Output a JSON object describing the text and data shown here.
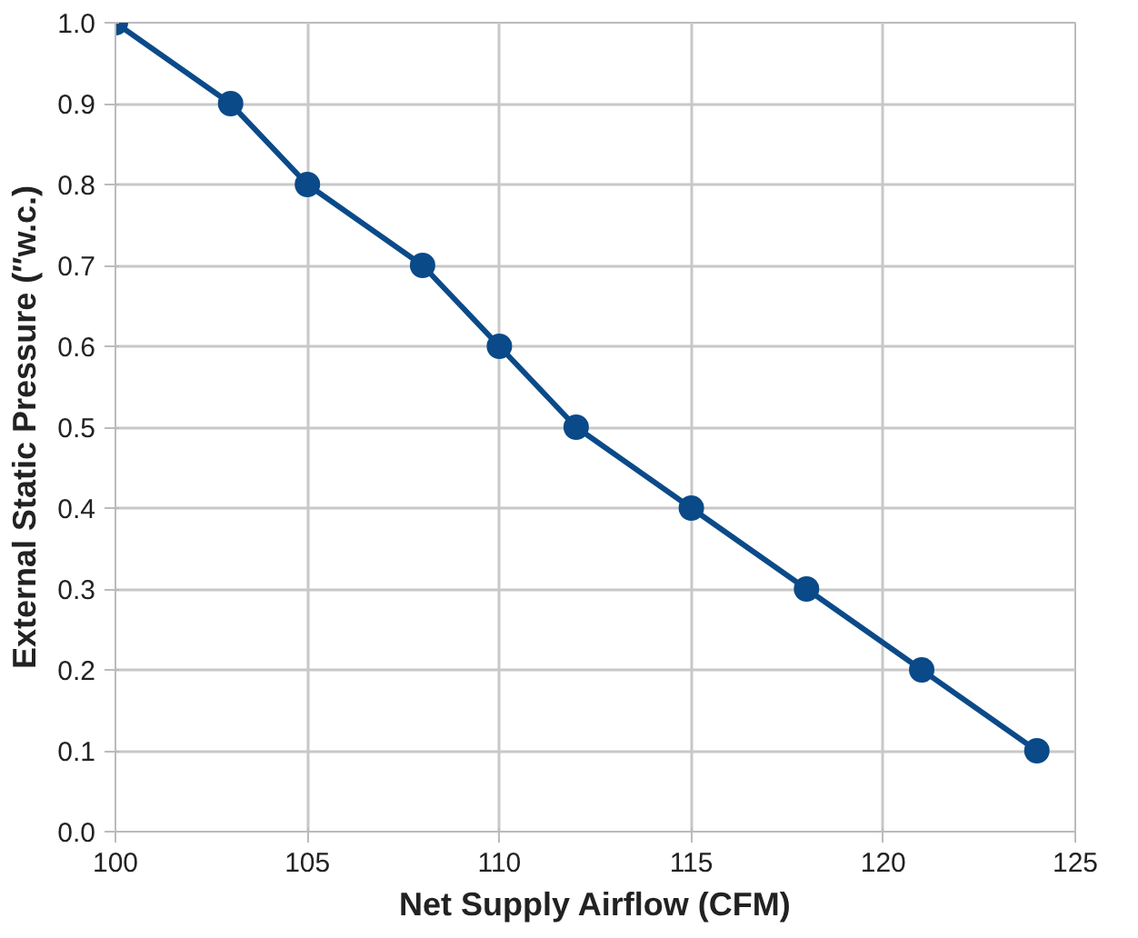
{
  "chart_data": {
    "type": "line",
    "xlabel": "Net Supply Airflow (CFM)",
    "ylabel": "External Static Pressure (″w.c.)",
    "x": [
      100,
      103,
      105,
      108,
      110,
      112,
      115,
      118,
      121,
      124
    ],
    "series": [
      {
        "color": "#0b4a89",
        "values": [
          1.0,
          0.9,
          0.8,
          0.7,
          0.6,
          0.5,
          0.4,
          0.3,
          0.2,
          0.1
        ]
      }
    ],
    "xlim": [
      100,
      125
    ],
    "xticks": [
      100,
      105,
      110,
      115,
      120,
      125
    ],
    "ylim": [
      0,
      1.0
    ],
    "yticks": [
      {
        "value": 0,
        "label": "0.0"
      },
      {
        "value": 0.1,
        "label": "0.1"
      },
      {
        "value": 0.2,
        "label": "0.2"
      },
      {
        "value": 0.3,
        "label": "0.3"
      },
      {
        "value": 0.4,
        "label": "0.4"
      },
      {
        "value": 0.5,
        "label": "0.5"
      },
      {
        "value": 0.6,
        "label": "0.6"
      },
      {
        "value": 0.7,
        "label": "0.7"
      },
      {
        "value": 0.8,
        "label": "0.8"
      },
      {
        "value": 0.9,
        "label": "0.9"
      },
      {
        "value": 1.0,
        "label": "1.0"
      }
    ],
    "grid": true,
    "marker": "circle",
    "line_style": "solid"
  }
}
